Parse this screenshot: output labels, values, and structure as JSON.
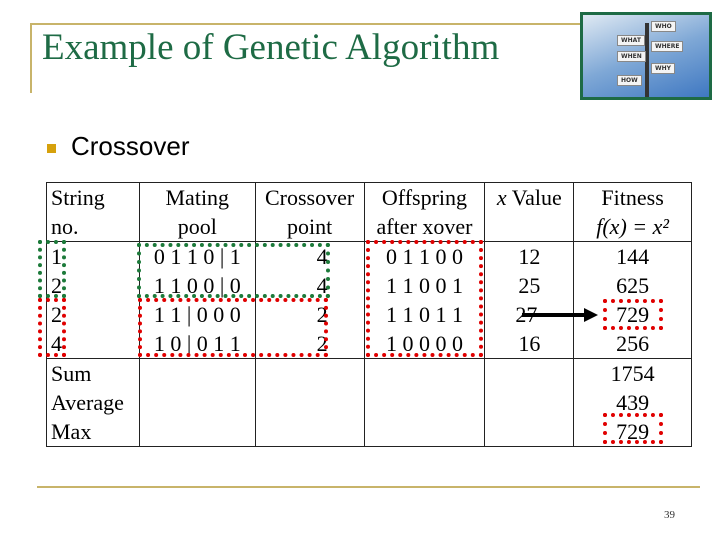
{
  "title": "Example of Genetic Algorithm",
  "photo_signs": [
    "WHO",
    "WHAT",
    "WHERE",
    "WHEN",
    "WHY",
    "HOW"
  ],
  "bullet": "Crossover",
  "table": {
    "headers": [
      [
        "String",
        "no."
      ],
      [
        "Mating",
        "pool"
      ],
      [
        "Crossover",
        "point"
      ],
      [
        "Offspring",
        "after xover"
      ],
      [
        "x Value",
        ""
      ],
      [
        "Fitness",
        "f(x) = x²"
      ]
    ],
    "rows": [
      {
        "string_no": "1",
        "mating_pool": "0 1 1 0 | 1",
        "crossover_point": "4",
        "offspring": "0 1 1 0 0",
        "x_value": "12",
        "fitness": "144"
      },
      {
        "string_no": "2",
        "mating_pool": "1 1 0 0 | 0",
        "crossover_point": "4",
        "offspring": "1 1 0 0 1",
        "x_value": "25",
        "fitness": "625"
      },
      {
        "string_no": "2",
        "mating_pool": "1 1 | 0 0 0",
        "crossover_point": "2",
        "offspring": "1 1 0 1 1",
        "x_value": "27",
        "fitness": "729"
      },
      {
        "string_no": "4",
        "mating_pool": "1 0 | 0 1 1",
        "crossover_point": "2",
        "offspring": "1 0 0 0 0",
        "x_value": "16",
        "fitness": "256"
      }
    ],
    "summary": [
      {
        "label": "Sum",
        "fitness": "1754"
      },
      {
        "label": "Average",
        "fitness": "439"
      },
      {
        "label": "Max",
        "fitness": "729"
      }
    ]
  },
  "highlight_colors": {
    "pair1": "#1c7a3a",
    "pair2": "#e00000"
  },
  "page_number": "39"
}
